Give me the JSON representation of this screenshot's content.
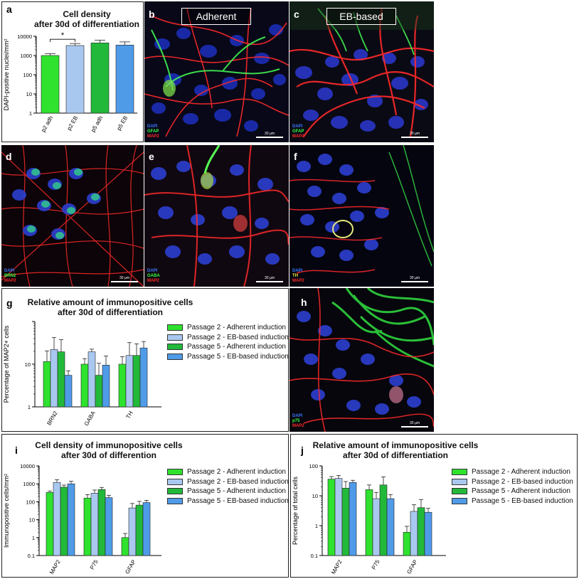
{
  "colors": {
    "p2_adh": "#2ee22e",
    "p2_eb": "#a9c8f0",
    "p5_adh": "#22b93a",
    "p5_eb": "#4f9be8",
    "dapi": "#3a78ff",
    "map2": "#ff2a2a",
    "green": "#33ff44"
  },
  "panel_a": {
    "label": "a",
    "title_line1": "Cell density",
    "title_line2": "after 30d of differentiation",
    "significance": "*",
    "chart_data": {
      "type": "bar",
      "categories": [
        "p2 adh",
        "p2 EB",
        "p5 adh",
        "p5 EB"
      ],
      "values": [
        1000,
        3300,
        4500,
        3500
      ],
      "errors": [
        250,
        900,
        1800,
        1600
      ],
      "ylabel": "DAPI-positive nuclei/mm²",
      "yscale": "log",
      "ylim": [
        1,
        10000
      ],
      "yticks": [
        "1",
        "10",
        "100",
        "1000",
        "10000"
      ]
    }
  },
  "panel_b": {
    "label": "b",
    "header": "Adherent",
    "stains": [
      "DAPI",
      "GFAP",
      "MAP2"
    ],
    "scale": "30 µm"
  },
  "panel_c": {
    "label": "c",
    "header": "EB-based",
    "stains": [
      "DAPI",
      "GFAP",
      "MAP2"
    ],
    "scale": "30 µm"
  },
  "panel_d": {
    "label": "d",
    "stains": [
      "DAPI",
      "BRN2",
      "MAP2"
    ],
    "scale": "30 µm"
  },
  "panel_e": {
    "label": "e",
    "stains": [
      "DAPI",
      "GABA",
      "MAP2"
    ],
    "scale": "30 µm"
  },
  "panel_f": {
    "label": "f",
    "stains": [
      "DAPI",
      "TH",
      "MAP2"
    ],
    "scale": "30 µm"
  },
  "panel_h": {
    "label": "h",
    "stains": [
      "DAPI",
      "p75",
      "MAP2"
    ],
    "scale": "30 µm"
  },
  "panel_g": {
    "label": "g",
    "title_line1": "Relative amount of immunopositive cells",
    "title_line2": "after 30d of differentiation",
    "chart_data": {
      "type": "bar",
      "categories": [
        "BRN2",
        "GABA",
        "TH"
      ],
      "series": [
        {
          "name": "Passage 2 - Adherent induction",
          "values": [
            11.5,
            10,
            10
          ],
          "errors": [
            9,
            3.5,
            5
          ]
        },
        {
          "name": "Passage 2 - EB-based induction",
          "values": [
            22,
            19.5,
            16
          ],
          "errors": [
            20,
            3,
            16
          ]
        },
        {
          "name": "Passage 5 - Adherent induction",
          "values": [
            19.5,
            5.5,
            16
          ],
          "errors": [
            18,
            5,
            14
          ]
        },
        {
          "name": "Passage 5 - EB-based induction",
          "values": [
            5.5,
            9.5,
            24
          ],
          "errors": [
            1.5,
            6,
            10
          ]
        }
      ],
      "ylabel": "Percentage of MAP2+ cells",
      "yscale": "log",
      "ylim": [
        1,
        100
      ],
      "yticks": [
        "1",
        "10"
      ]
    }
  },
  "panel_i": {
    "label": "i",
    "title_line1": "Cell density of immunopositive cells",
    "title_line2": "after 30d of differention",
    "chart_data": {
      "type": "bar",
      "categories": [
        "MAP2",
        "P75",
        "GFAP"
      ],
      "series": [
        {
          "name": "Passage 2 - Adherent induction",
          "values": [
            330,
            160,
            1
          ],
          "errors": [
            70,
            90,
            0.7
          ]
        },
        {
          "name": "Passage 2 - EB-based induction",
          "values": [
            1200,
            300,
            45
          ],
          "errors": [
            500,
            150,
            35
          ]
        },
        {
          "name": "Passage 5 - Adherent induction",
          "values": [
            650,
            480,
            65
          ],
          "errors": [
            200,
            150,
            40
          ]
        },
        {
          "name": "Passage 5 - EB-based induction",
          "values": [
            1000,
            170,
            90
          ],
          "errors": [
            400,
            60,
            30
          ]
        }
      ],
      "ylabel": "Immunopositive cells/mm²",
      "yscale": "log",
      "ylim": [
        0.1,
        10000
      ],
      "yticks": [
        "0.1",
        "1",
        "10",
        "100",
        "1000",
        "10000"
      ]
    }
  },
  "panel_j": {
    "label": "j",
    "title_line1": "Relative amount of immunopositive cells",
    "title_line2": "after 30d of differentiation",
    "chart_data": {
      "type": "bar",
      "categories": [
        "MAP2",
        "P75",
        "GFAP"
      ],
      "series": [
        {
          "name": "Passage 2 - Adherent induction",
          "values": [
            36,
            16,
            0.6
          ],
          "errors": [
            8,
            7,
            0.35
          ]
        },
        {
          "name": "Passage 2 - EB-based induction",
          "values": [
            38,
            8,
            3
          ],
          "errors": [
            10,
            5,
            2
          ]
        },
        {
          "name": "Passage 5 - Adherent induction",
          "values": [
            18,
            23,
            4
          ],
          "errors": [
            12,
            20,
            3.5
          ]
        },
        {
          "name": "Passage 5 - EB-based induction",
          "values": [
            28,
            8,
            2.8
          ],
          "errors": [
            5,
            3,
            1
          ]
        }
      ],
      "ylabel": "Percentage of total cells",
      "yscale": "log",
      "ylim": [
        0.1,
        100
      ],
      "yticks": [
        "0.1",
        "1",
        "10",
        "100"
      ]
    }
  }
}
